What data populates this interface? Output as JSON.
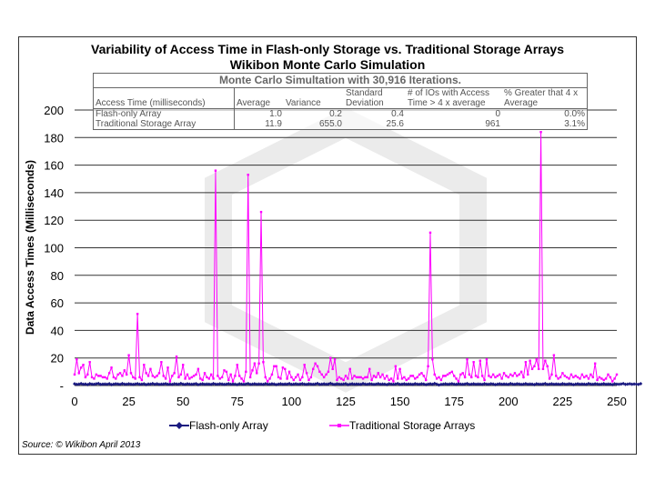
{
  "chart_data": {
    "type": "line",
    "title": "Variability of  Access Time in Flash-only Storage vs. Traditional Storage Arrays",
    "subtitle": "Wikibon Monte Carlo Simulation",
    "xlabel": "",
    "ylabel": "Data Access Times (Milliseconds)",
    "xlim": [
      0,
      250
    ],
    "ylim": [
      0,
      200
    ],
    "x_ticks": [
      "0",
      "25",
      "50",
      "75",
      "100",
      "125",
      "150",
      "175",
      "200",
      "225",
      "250"
    ],
    "y_ticks": [
      "-",
      "20",
      "40",
      "60",
      "80",
      "100",
      "120",
      "140",
      "160",
      "180",
      "200"
    ],
    "grid": "horizontal",
    "legend_placement": "bottom",
    "series": [
      {
        "name": "Flash-only Array",
        "color": "#1a1a80",
        "marker": "diamond",
        "values": [
          1.2,
          0.8,
          1.0,
          1.4,
          0.9,
          1.1,
          0.7,
          1.3,
          1.0,
          0.9,
          1.2,
          1.5,
          0.8,
          1.0,
          1.1,
          0.9,
          1.3,
          0.7,
          1.0,
          1.2,
          1.1,
          0.8,
          1.4,
          1.0,
          0.9,
          1.2,
          1.0,
          0.8,
          1.1,
          1.3,
          0.9,
          1.0,
          1.2,
          0.7,
          1.1,
          1.0,
          1.4,
          0.9,
          1.2,
          0.8,
          1.0,
          1.1,
          1.3,
          0.9,
          1.0,
          0.8,
          1.2,
          1.1,
          0.9,
          1.5,
          1.0,
          0.8,
          1.2,
          1.0,
          0.9,
          1.1,
          1.3,
          0.7,
          1.0,
          1.2,
          0.9,
          1.1,
          1.0,
          0.8,
          1.4,
          1.0,
          0.9,
          1.2,
          1.1,
          0.8,
          1.0,
          1.3,
          0.9,
          1.1,
          1.0,
          0.7,
          1.2,
          1.0,
          0.9,
          1.1,
          1.4,
          0.8,
          1.0,
          1.2,
          0.9,
          1.1,
          1.0,
          0.8,
          1.3,
          1.0,
          0.9,
          1.2,
          1.1,
          0.7,
          1.0,
          1.2,
          0.9,
          1.1,
          1.0,
          1.4,
          0.8,
          1.0,
          1.2,
          0.9,
          1.1,
          1.3,
          1.0,
          0.8,
          1.2,
          1.0,
          0.9,
          1.1,
          1.5,
          0.8,
          1.0,
          1.2,
          0.9,
          1.1,
          1.6,
          1.0,
          0.8,
          1.2,
          1.0,
          0.9,
          1.1,
          1.3,
          0.7,
          1.0,
          1.2,
          0.9,
          1.1,
          1.0,
          0.8,
          1.4,
          1.0,
          0.9,
          1.2,
          1.1,
          0.8,
          1.0,
          1.3,
          0.9,
          1.1,
          1.0,
          0.7,
          1.2,
          1.0,
          0.9,
          1.1,
          1.4,
          0.8,
          1.0,
          1.2,
          0.9,
          1.1,
          1.0,
          0.8,
          1.3,
          1.0,
          0.9,
          1.2,
          1.1,
          0.7,
          1.0,
          1.2,
          0.9,
          1.5,
          1.0,
          0.4,
          0.8,
          1.0,
          1.2,
          0.9,
          1.1,
          1.3,
          1.0,
          0.8,
          1.2,
          1.0,
          0.9,
          1.1,
          1.4,
          0.8,
          1.0,
          1.2,
          0.9,
          1.1,
          1.0,
          0.8,
          1.3,
          1.0,
          0.9,
          1.2,
          1.1,
          0.7,
          1.0,
          1.2,
          0.9,
          1.1,
          1.0,
          0.8,
          1.4,
          1.0,
          0.9,
          1.2,
          1.1,
          0.8,
          1.0,
          1.3,
          0.9,
          1.1,
          1.0,
          0.7,
          1.2,
          1.0,
          0.9,
          1.1,
          1.4,
          0.8,
          1.0,
          1.2,
          0.9,
          1.1,
          1.0,
          0.8,
          1.3,
          1.0,
          0.9,
          1.2,
          1.1,
          0.7,
          1.0,
          1.2,
          0.9,
          1.1,
          1.0,
          0.8,
          1.4,
          1.0,
          0.9,
          1.2,
          1.1,
          0.8,
          1.0,
          1.3,
          0.9,
          1.1,
          1.0,
          0.7,
          1.2,
          1.0,
          0.9,
          1.1,
          1.4,
          0.8,
          1.0,
          1.2,
          0.9,
          1.1,
          1.0,
          0.8,
          1.3
        ]
      },
      {
        "name": "Traditional Storage Arrays",
        "color": "#ff00ff",
        "marker": "square",
        "values": [
          8,
          19,
          9,
          13,
          15,
          6,
          8,
          17,
          6,
          5,
          8,
          7,
          7,
          6,
          6,
          5,
          9,
          13,
          6,
          5,
          8,
          9,
          7,
          11,
          8,
          22,
          9,
          6,
          5,
          52,
          6,
          4,
          15,
          9,
          7,
          12,
          7,
          6,
          7,
          9,
          17,
          7,
          5,
          13,
          3,
          7,
          9,
          21,
          6,
          8,
          15,
          5,
          8,
          5,
          6,
          7,
          8,
          12,
          5,
          4,
          9,
          6,
          5,
          8,
          5,
          156,
          7,
          5,
          6,
          11,
          10,
          4,
          8,
          3,
          7,
          15,
          7,
          5,
          3,
          10,
          153,
          6,
          11,
          16,
          9,
          16,
          126,
          17,
          6,
          3,
          5,
          8,
          14,
          14,
          6,
          5,
          13,
          12,
          5,
          10,
          6,
          4,
          6,
          8,
          4,
          6,
          15,
          9,
          4,
          6,
          12,
          16,
          14,
          10,
          8,
          6,
          8,
          10,
          20,
          12,
          19,
          4,
          6,
          5,
          4,
          7,
          5,
          12,
          5,
          7,
          6,
          6,
          6,
          5,
          6,
          6,
          12,
          4,
          7,
          6,
          9,
          6,
          8,
          5,
          7,
          4,
          5,
          3,
          14,
          5,
          12,
          5,
          6,
          4,
          5,
          7,
          7,
          5,
          6,
          8,
          9,
          7,
          4,
          14,
          111,
          19,
          8,
          5,
          6,
          4,
          7,
          7,
          8,
          9,
          10,
          7,
          5,
          3,
          8,
          9,
          6,
          19,
          8,
          6,
          17,
          7,
          6,
          18,
          7,
          4,
          19,
          7,
          6,
          8,
          6,
          7,
          8,
          5,
          9,
          7,
          6,
          8,
          7,
          9,
          7,
          8,
          10,
          6,
          17,
          8,
          18,
          12,
          14,
          19,
          12,
          184,
          12,
          18,
          14,
          5,
          8,
          22,
          7,
          5,
          6,
          9,
          7,
          6,
          5,
          8,
          6,
          7,
          6,
          5,
          8,
          6,
          7,
          5,
          8,
          6,
          16,
          4,
          6,
          5,
          4,
          5,
          8,
          6,
          3,
          5,
          8
        ]
      }
    ],
    "table": {
      "caption": "Monte Carlo Simultation with 30,916 Iterations.",
      "headers": [
        "Access Time (milliseconds)",
        "Average",
        "Variance",
        "Standard Deviation",
        "# of IOs with Access Time > 4 x average",
        "% Greater that 4 x Average"
      ],
      "rows": [
        [
          "Flash-only Array",
          "1.0",
          "0.2",
          "0.4",
          "0",
          "0.0%"
        ],
        [
          "Traditional Storage Array",
          "11.9",
          "655.0",
          "25.6",
          "961",
          "3.1%"
        ]
      ]
    },
    "source": "Source: © Wikibon April 2013"
  }
}
